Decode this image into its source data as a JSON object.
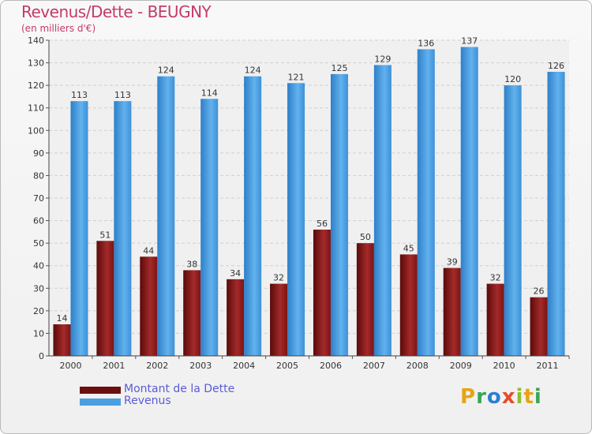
{
  "title": "Revenus/Dette - BEUGNY",
  "subtitle": "(en milliers d'€)",
  "brand": {
    "letters": [
      "P",
      "r",
      "o",
      "x",
      "i",
      "t",
      "i"
    ],
    "colors": [
      "#e8a317",
      "#3aa655",
      "#2a7fd1",
      "#e84a2a",
      "#8dbf2f",
      "#e8a317",
      "#3aa655"
    ]
  },
  "colors": {
    "dette": "#8b1a1a",
    "revenus": "#4a9fe2"
  },
  "chart_data": {
    "type": "bar",
    "title": "Revenus/Dette - BEUGNY",
    "subtitle": "(en milliers d'€)",
    "categories": [
      "2000",
      "2001",
      "2002",
      "2003",
      "2004",
      "2005",
      "2006",
      "2007",
      "2008",
      "2009",
      "2010",
      "2011"
    ],
    "series": [
      {
        "name": "Montant de la Dette",
        "values": [
          14,
          51,
          44,
          38,
          34,
          32,
          56,
          50,
          45,
          39,
          32,
          26
        ]
      },
      {
        "name": "Revenus",
        "values": [
          113,
          113,
          124,
          114,
          124,
          121,
          125,
          129,
          136,
          137,
          120,
          126
        ]
      }
    ],
    "ylim": [
      0,
      140
    ],
    "yticks": [
      0,
      10,
      20,
      30,
      40,
      50,
      60,
      70,
      80,
      90,
      100,
      110,
      120,
      130,
      140
    ],
    "grid": true,
    "legend": "bottom-left"
  }
}
